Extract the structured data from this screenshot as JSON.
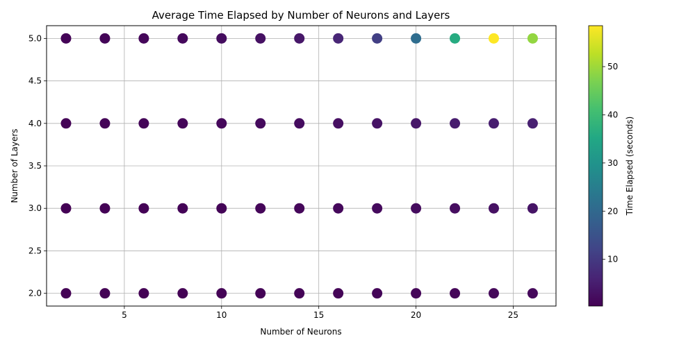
{
  "chart_data": {
    "type": "scatter",
    "title": "Average Time Elapsed by Number of Neurons and Layers",
    "xlabel": "Number of Neurons",
    "ylabel": "Number of Layers",
    "xlim": [
      1.0,
      27.2
    ],
    "ylim": [
      1.85,
      5.15
    ],
    "xticks": [
      5,
      10,
      15,
      20,
      25
    ],
    "yticks": [
      2.0,
      2.5,
      3.0,
      3.5,
      4.0,
      4.5,
      5.0
    ],
    "grid": true,
    "colormap": "viridis",
    "colorbar": {
      "label": "Time Elapsed (seconds)",
      "range": [
        0.3,
        58.5
      ],
      "ticks": [
        10,
        20,
        30,
        40,
        50
      ]
    },
    "points": [
      {
        "x": 2,
        "y": 2,
        "t": 0.4
      },
      {
        "x": 4,
        "y": 2,
        "t": 0.4
      },
      {
        "x": 6,
        "y": 2,
        "t": 0.5
      },
      {
        "x": 8,
        "y": 2,
        "t": 0.5
      },
      {
        "x": 10,
        "y": 2,
        "t": 0.6
      },
      {
        "x": 12,
        "y": 2,
        "t": 0.7
      },
      {
        "x": 14,
        "y": 2,
        "t": 0.8
      },
      {
        "x": 16,
        "y": 2,
        "t": 0.9
      },
      {
        "x": 18,
        "y": 2,
        "t": 1.0
      },
      {
        "x": 20,
        "y": 2,
        "t": 1.1
      },
      {
        "x": 22,
        "y": 2,
        "t": 1.2
      },
      {
        "x": 24,
        "y": 2,
        "t": 1.4
      },
      {
        "x": 26,
        "y": 2,
        "t": 1.5
      },
      {
        "x": 2,
        "y": 3,
        "t": 0.5
      },
      {
        "x": 4,
        "y": 3,
        "t": 0.6
      },
      {
        "x": 6,
        "y": 3,
        "t": 0.7
      },
      {
        "x": 8,
        "y": 3,
        "t": 0.8
      },
      {
        "x": 10,
        "y": 3,
        "t": 0.9
      },
      {
        "x": 12,
        "y": 3,
        "t": 1.1
      },
      {
        "x": 14,
        "y": 3,
        "t": 1.3
      },
      {
        "x": 16,
        "y": 3,
        "t": 1.5
      },
      {
        "x": 18,
        "y": 3,
        "t": 1.8
      },
      {
        "x": 20,
        "y": 3,
        "t": 2.1
      },
      {
        "x": 22,
        "y": 3,
        "t": 2.5
      },
      {
        "x": 24,
        "y": 3,
        "t": 2.9
      },
      {
        "x": 26,
        "y": 3,
        "t": 3.4
      },
      {
        "x": 2,
        "y": 4,
        "t": 0.6
      },
      {
        "x": 4,
        "y": 4,
        "t": 0.8
      },
      {
        "x": 6,
        "y": 4,
        "t": 1.0
      },
      {
        "x": 8,
        "y": 4,
        "t": 1.2
      },
      {
        "x": 10,
        "y": 4,
        "t": 1.5
      },
      {
        "x": 12,
        "y": 4,
        "t": 1.8
      },
      {
        "x": 14,
        "y": 4,
        "t": 2.2
      },
      {
        "x": 16,
        "y": 4,
        "t": 2.7
      },
      {
        "x": 18,
        "y": 4,
        "t": 3.3
      },
      {
        "x": 20,
        "y": 4,
        "t": 4.0
      },
      {
        "x": 22,
        "y": 4,
        "t": 4.8
      },
      {
        "x": 24,
        "y": 4,
        "t": 5.0
      },
      {
        "x": 26,
        "y": 4,
        "t": 5.5
      },
      {
        "x": 2,
        "y": 5,
        "t": 0.8
      },
      {
        "x": 4,
        "y": 5,
        "t": 1.0
      },
      {
        "x": 6,
        "y": 5,
        "t": 1.3
      },
      {
        "x": 8,
        "y": 5,
        "t": 1.7
      },
      {
        "x": 10,
        "y": 5,
        "t": 2.3
      },
      {
        "x": 12,
        "y": 5,
        "t": 3.0
      },
      {
        "x": 14,
        "y": 5,
        "t": 4.0
      },
      {
        "x": 16,
        "y": 5,
        "t": 6.5
      },
      {
        "x": 18,
        "y": 5,
        "t": 11.0
      },
      {
        "x": 20,
        "y": 5,
        "t": 21.0
      },
      {
        "x": 22,
        "y": 5,
        "t": 36.0
      },
      {
        "x": 24,
        "y": 5,
        "t": 58.5
      },
      {
        "x": 26,
        "y": 5,
        "t": 49.0
      }
    ]
  }
}
